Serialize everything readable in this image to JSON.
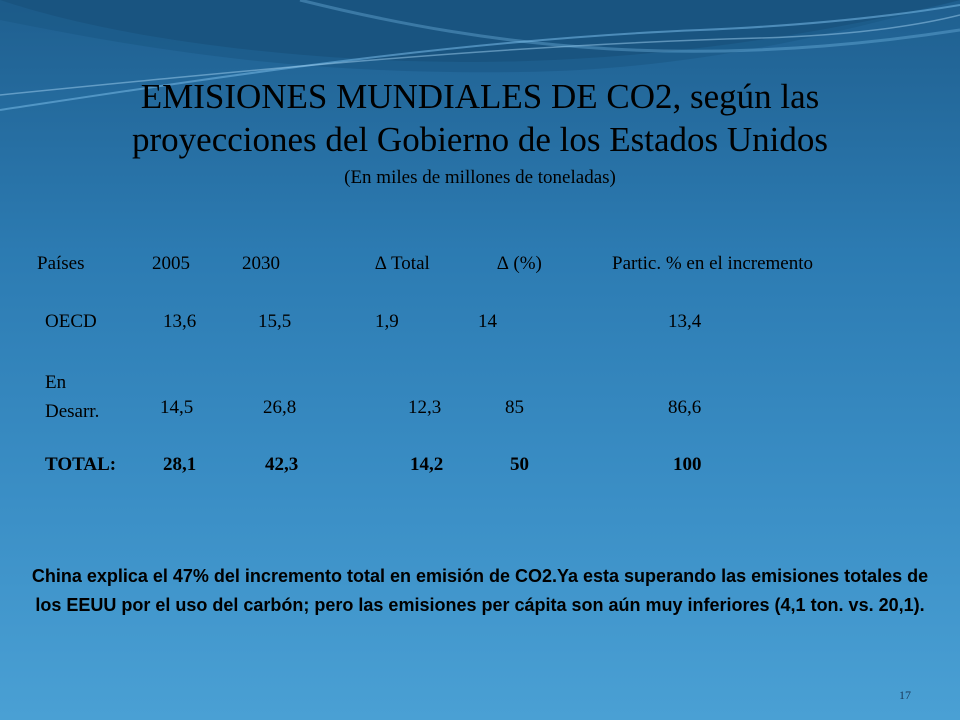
{
  "header": {
    "title": [
      "EMISIONES MUNDIALES DE CO2, según las",
      "proyecciones del Gobierno de los Estados Unidos"
    ],
    "subtitle": "(En miles de millones de toneladas)"
  },
  "table": {
    "columns": [
      "Países",
      "2005",
      "2030",
      "∆ Total",
      "∆ (%)",
      "Partic. % en el incremento"
    ],
    "rows": [
      [
        "OECD",
        "13,6",
        "15,5",
        "1,9",
        "14",
        "13,4"
      ],
      [
        "En Desarr.",
        "14,5",
        "26,8",
        "12,3",
        "85",
        "86,6"
      ],
      [
        "TOTAL:",
        "28,1",
        "42,3",
        "14,2",
        "50",
        "100"
      ]
    ]
  },
  "note": "China explica el 47% del incremento total en emisión de CO2.Ya esta superando las emisiones totales de los EEUU por el uso del carbón; pero las emisiones per cápita son aún muy inferiores (4,1 ton. vs. 20,1).",
  "slide_number": "17"
}
